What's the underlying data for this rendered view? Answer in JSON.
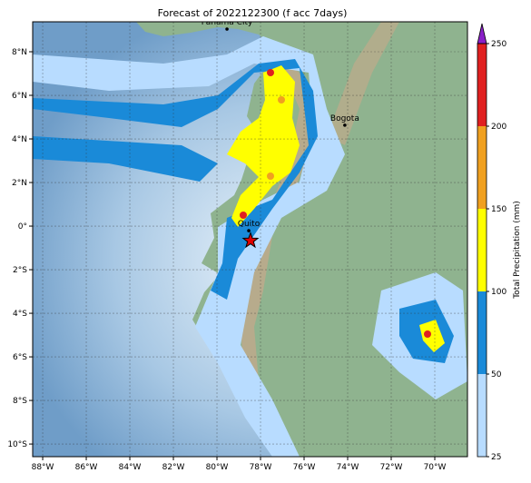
{
  "map": {
    "title": "Forecast of 2022122300 (f acc 7days)",
    "xlim": [
      -88.46,
      -68.5
    ],
    "ylim": [
      -10.58,
      9.375
    ],
    "xticks": [
      {
        "value": -88,
        "label": "88°W"
      },
      {
        "value": -86,
        "label": "86°W"
      },
      {
        "value": -84,
        "label": "84°W"
      },
      {
        "value": -82,
        "label": "82°W"
      },
      {
        "value": -80,
        "label": "80°W"
      },
      {
        "value": -78,
        "label": "78°W"
      },
      {
        "value": -76,
        "label": "76°W"
      },
      {
        "value": -74,
        "label": "74°W"
      },
      {
        "value": -72,
        "label": "72°W"
      },
      {
        "value": -70,
        "label": "70°W"
      }
    ],
    "yticks": [
      {
        "value": 8,
        "label": "8°N"
      },
      {
        "value": 6,
        "label": "6°N"
      },
      {
        "value": 4,
        "label": "4°N"
      },
      {
        "value": 2,
        "label": "2°N"
      },
      {
        "value": 0,
        "label": "0°"
      },
      {
        "value": -2,
        "label": "2°S"
      },
      {
        "value": -4,
        "label": "4°S"
      },
      {
        "value": -6,
        "label": "6°S"
      },
      {
        "value": -8,
        "label": "8°S"
      },
      {
        "value": -10,
        "label": "10°S"
      }
    ],
    "cities": [
      {
        "name": "Panama City",
        "lon": -79.54,
        "lat": 9.04
      },
      {
        "name": "Bogota",
        "lon": -74.13,
        "lat": 4.63
      },
      {
        "name": "Quito",
        "lon": -78.54,
        "lat": -0.21
      }
    ],
    "marker": {
      "lon": -78.46,
      "lat": -0.67
    },
    "colorbar": {
      "label": "Total Precipitation (mm)",
      "levels": [
        25,
        50,
        100,
        150,
        200,
        250
      ],
      "colors": [
        "#b8dcff",
        "#1a8ad8",
        "#ffff00",
        "#f0a020",
        "#e02020"
      ],
      "extend_color": "#8a20c8"
    }
  }
}
